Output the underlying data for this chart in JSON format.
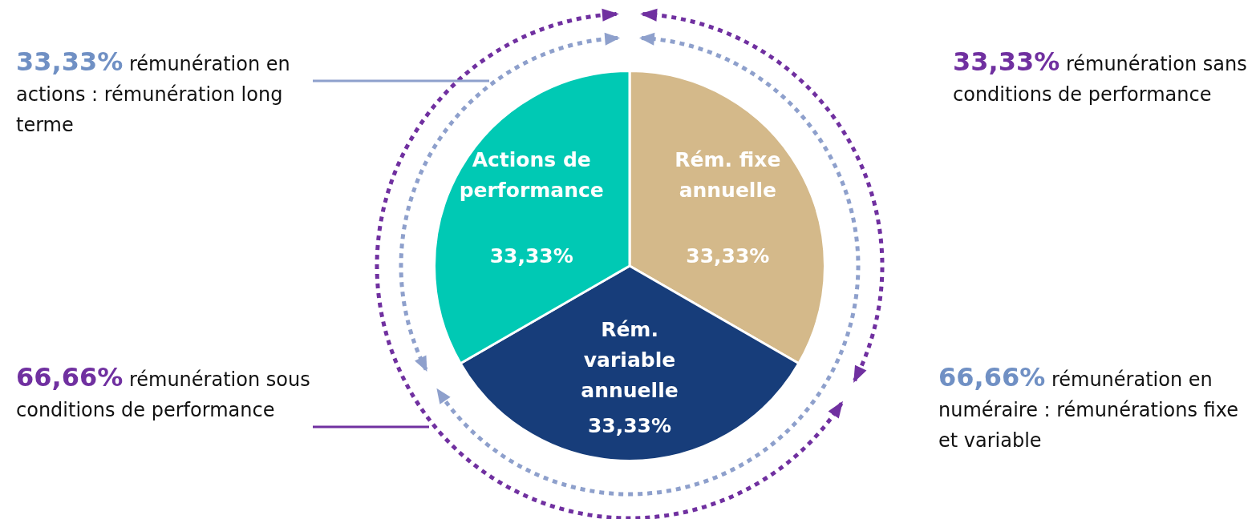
{
  "chart_data": {
    "type": "pie",
    "categories": [
      "Rém. fixe annuelle",
      "Rém. variable annuelle",
      "Actions de performance"
    ],
    "values": [
      33.33,
      33.33,
      33.33
    ],
    "value_labels": [
      "33,33%",
      "33,33%",
      "33,33%"
    ],
    "colors": [
      "#d4b98a",
      "#173d7a",
      "#00c9b4"
    ],
    "legend": false,
    "annotations": [
      "33,33% rémunération en actions : rémunération long terme",
      "33,33% rémunération sans conditions de performance",
      "66,66% rémunération sous conditions de performance",
      "66,66% rémunération en numéraire : rémunérations fixe et variable"
    ]
  }
}
